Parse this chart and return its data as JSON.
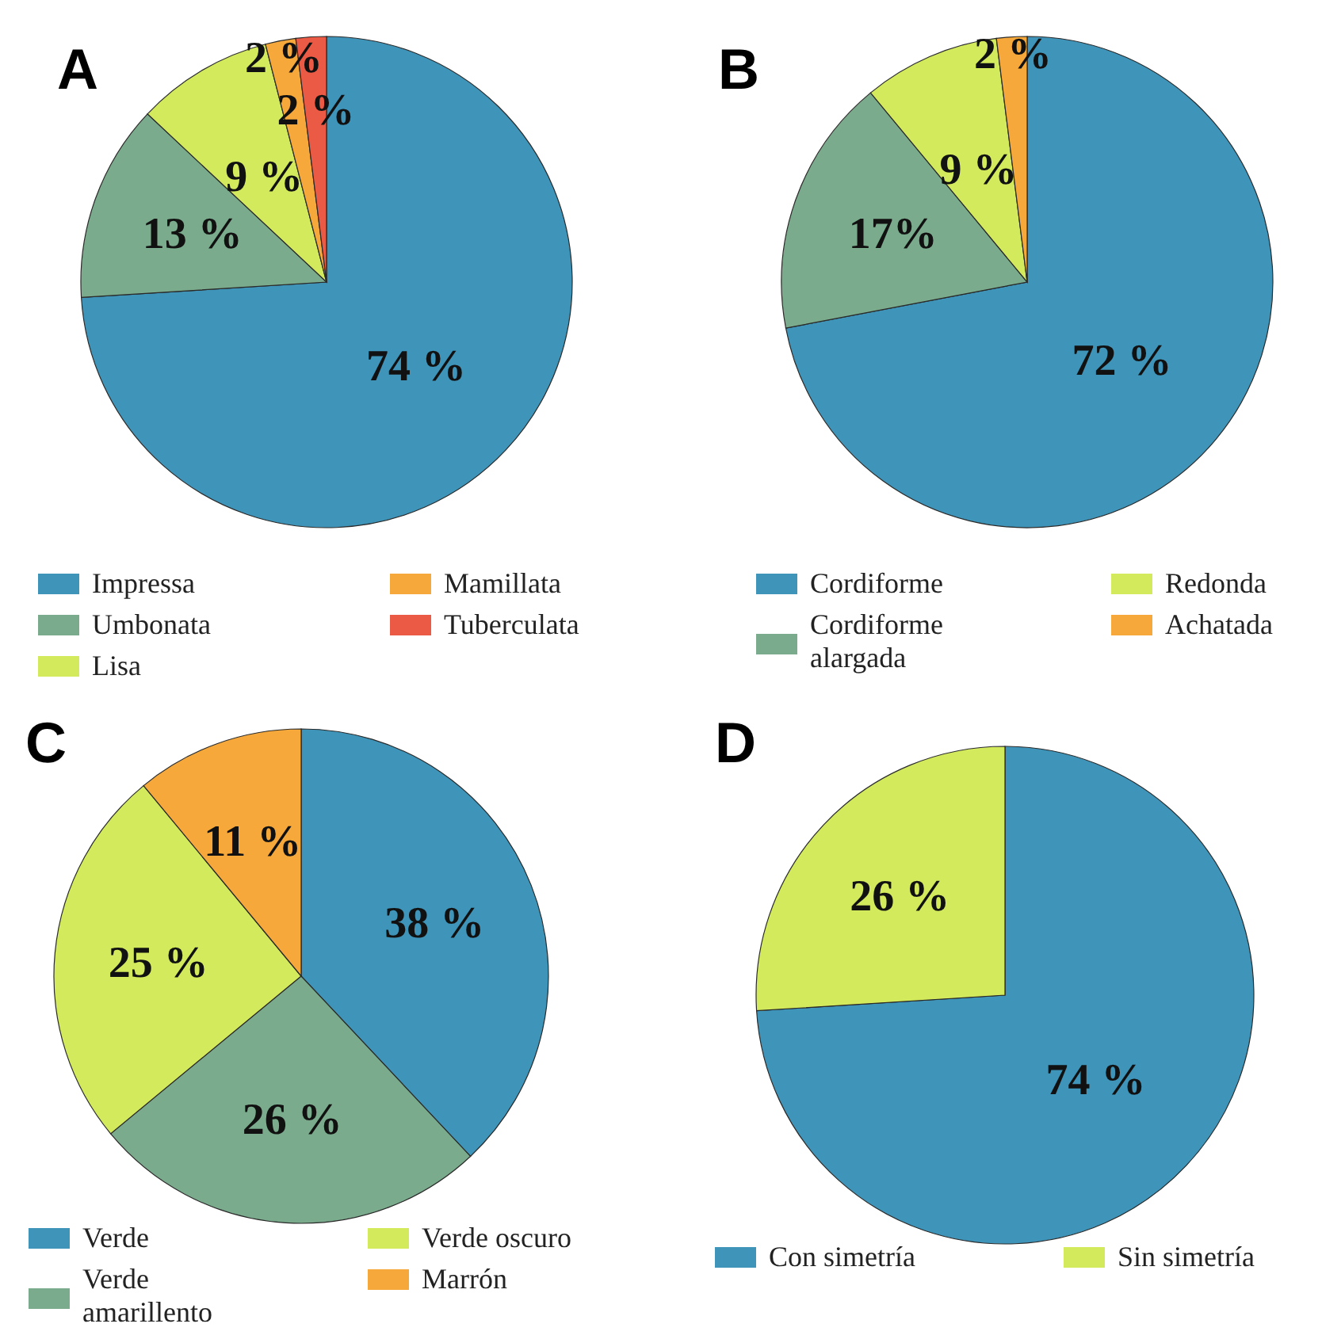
{
  "chart_data": [
    {
      "type": "pie",
      "title": "A",
      "categories": [
        "Impressa",
        "Umbonata",
        "Lisa",
        "Mamillata",
        "Tuberculata"
      ],
      "values": [
        74,
        13,
        9,
        2,
        2
      ],
      "value_labels": [
        "74 %",
        "13 %",
        "9 %",
        "2 %",
        "2 %"
      ],
      "colors": [
        "#3f94b9",
        "#7aab8c",
        "#d2ea5c",
        "#f6a93a",
        "#eb5a45"
      ],
      "legend": "bottom"
    },
    {
      "type": "pie",
      "title": "B",
      "categories": [
        "Cordiforme",
        "Cordiforme alargada",
        "Redonda",
        "Achatada"
      ],
      "values": [
        72,
        17,
        9,
        2
      ],
      "value_labels": [
        "72 %",
        "17%",
        "9 %",
        "2 %"
      ],
      "colors": [
        "#3f94b9",
        "#7aab8c",
        "#d2ea5c",
        "#f6a93a"
      ],
      "legend": "bottom"
    },
    {
      "type": "pie",
      "title": "C",
      "categories": [
        "Verde",
        "Verde amarillento",
        "Verde oscuro",
        "Marrón"
      ],
      "values": [
        38,
        26,
        25,
        11
      ],
      "value_labels": [
        "38 %",
        "26 %",
        "25 %",
        "11 %"
      ],
      "colors": [
        "#3f94b9",
        "#7aab8c",
        "#d2ea5c",
        "#f6a93a"
      ],
      "legend": "bottom"
    },
    {
      "type": "pie",
      "title": "D",
      "categories": [
        "Con simetría",
        "Sin simetría"
      ],
      "values": [
        74,
        26
      ],
      "value_labels": [
        "74 %",
        "26 %"
      ],
      "colors": [
        "#3f94b9",
        "#d2ea5c"
      ],
      "legend": "bottom"
    }
  ]
}
